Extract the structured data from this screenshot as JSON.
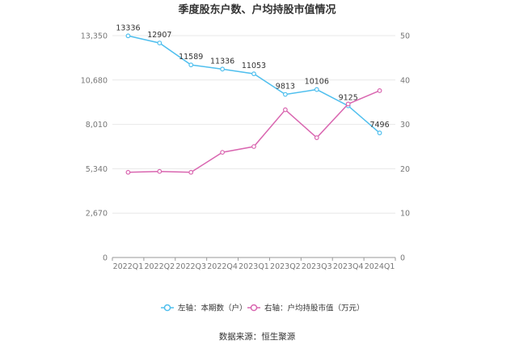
{
  "chart_data": {
    "type": "line",
    "title": "季度股东户数、户均持股市值情况",
    "categories": [
      "2022Q1",
      "2022Q2",
      "2022Q3",
      "2022Q4",
      "2023Q1",
      "2023Q2",
      "2023Q3",
      "2023Q4",
      "2024Q1"
    ],
    "left_axis": {
      "ticks": [
        "0",
        "2,670",
        "5,340",
        "8,010",
        "10,680",
        "13,350"
      ],
      "ylim": [
        0,
        13350
      ]
    },
    "right_axis": {
      "ticks": [
        "0",
        "10",
        "20",
        "30",
        "40",
        "50"
      ],
      "ylim": [
        0,
        50
      ]
    },
    "series": [
      {
        "name": "左轴：本期数（户）",
        "axis": "left",
        "color": "#4fbfee",
        "values": [
          13336,
          12907,
          11589,
          11336,
          11053,
          9813,
          10106,
          9125,
          7496
        ],
        "labels": [
          "13336",
          "12907",
          "11589",
          "11336",
          "11053",
          "9813",
          "10106",
          "9125",
          "7496"
        ]
      },
      {
        "name": "右轴：户均持股市值（万元）",
        "axis": "right",
        "color": "#d966b0",
        "values": [
          19.2,
          19.4,
          19.2,
          23.7,
          25.0,
          33.3,
          27.0,
          34.6,
          37.6
        ]
      }
    ],
    "grid": true,
    "legend_position": "bottom-center",
    "source": "数据来源：恒生聚源"
  }
}
